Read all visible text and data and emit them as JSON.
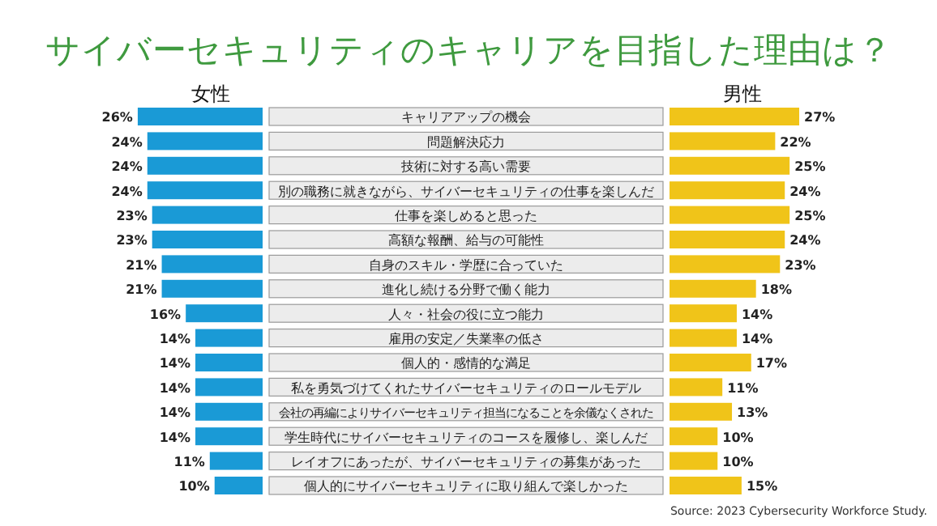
{
  "chart_data": [
    {
      "type": "bar",
      "orientation": "horizontal",
      "title": "サイバーセキュリティのキャリアを目指した理由は？",
      "categories": [
        "キャリアアップの機会",
        "問題解決応力",
        "技術に対する高い需要",
        "別の職務に就きながら、サイバーセキュリティの仕事を楽しんだ",
        "仕事を楽しめると思った",
        "高額な報酬、給与の可能性",
        "自身のスキル・学歴に合っていた",
        "進化し続ける分野で働く能力",
        "人々・社会の役に立つ能力",
        "雇用の安定／失業率の低さ",
        "個人的・感情的な満足",
        "私を勇気づけてくれたサイバーセキュリティのロールモデル",
        "会社の再編によりサイバーセキュリティ担当になることを余儀なくされた",
        "学生時代にサイバーセキュリティのコースを履修し、楽しんだ",
        "レイオフにあったが、サイバーセキュリティの募集があった",
        "個人的にサイバーセキュリティに取り組んで楽しかった"
      ],
      "series": [
        {
          "name": "女性",
          "color": "#1a9ad6",
          "values": [
            26,
            24,
            24,
            24,
            23,
            23,
            21,
            21,
            16,
            14,
            14,
            14,
            14,
            14,
            11,
            10
          ],
          "value_labels": [
            "26%",
            "24%",
            "24%",
            "24%",
            "23%",
            "23%",
            "21%",
            "21%",
            "16%",
            "14%",
            "14%",
            "14%",
            "14%",
            "14%",
            "11%",
            "10%"
          ]
        }
      ]
    },
    {
      "type": "bar",
      "orientation": "horizontal",
      "categories": [
        null,
        null,
        null,
        null,
        null,
        null,
        null,
        null,
        null,
        null,
        null,
        null,
        null,
        null,
        null,
        null
      ],
      "series": [
        {
          "name": "男性",
          "color": "#f0c419",
          "values": [
            27,
            22,
            25,
            24,
            25,
            24,
            23,
            18,
            14,
            14,
            17,
            11,
            13,
            10,
            10,
            15
          ],
          "value_labels": [
            "27%",
            "22%",
            "25%",
            "24%",
            "25%",
            "24%",
            "23%",
            "18%",
            "14%",
            "14%",
            "17%",
            "11%",
            "13%",
            "10%",
            "10%",
            "15%"
          ]
        }
      ],
      "annotations": [
        "Source: 2023 Cybersecurity Workforce Study."
      ]
    }
  ]
}
